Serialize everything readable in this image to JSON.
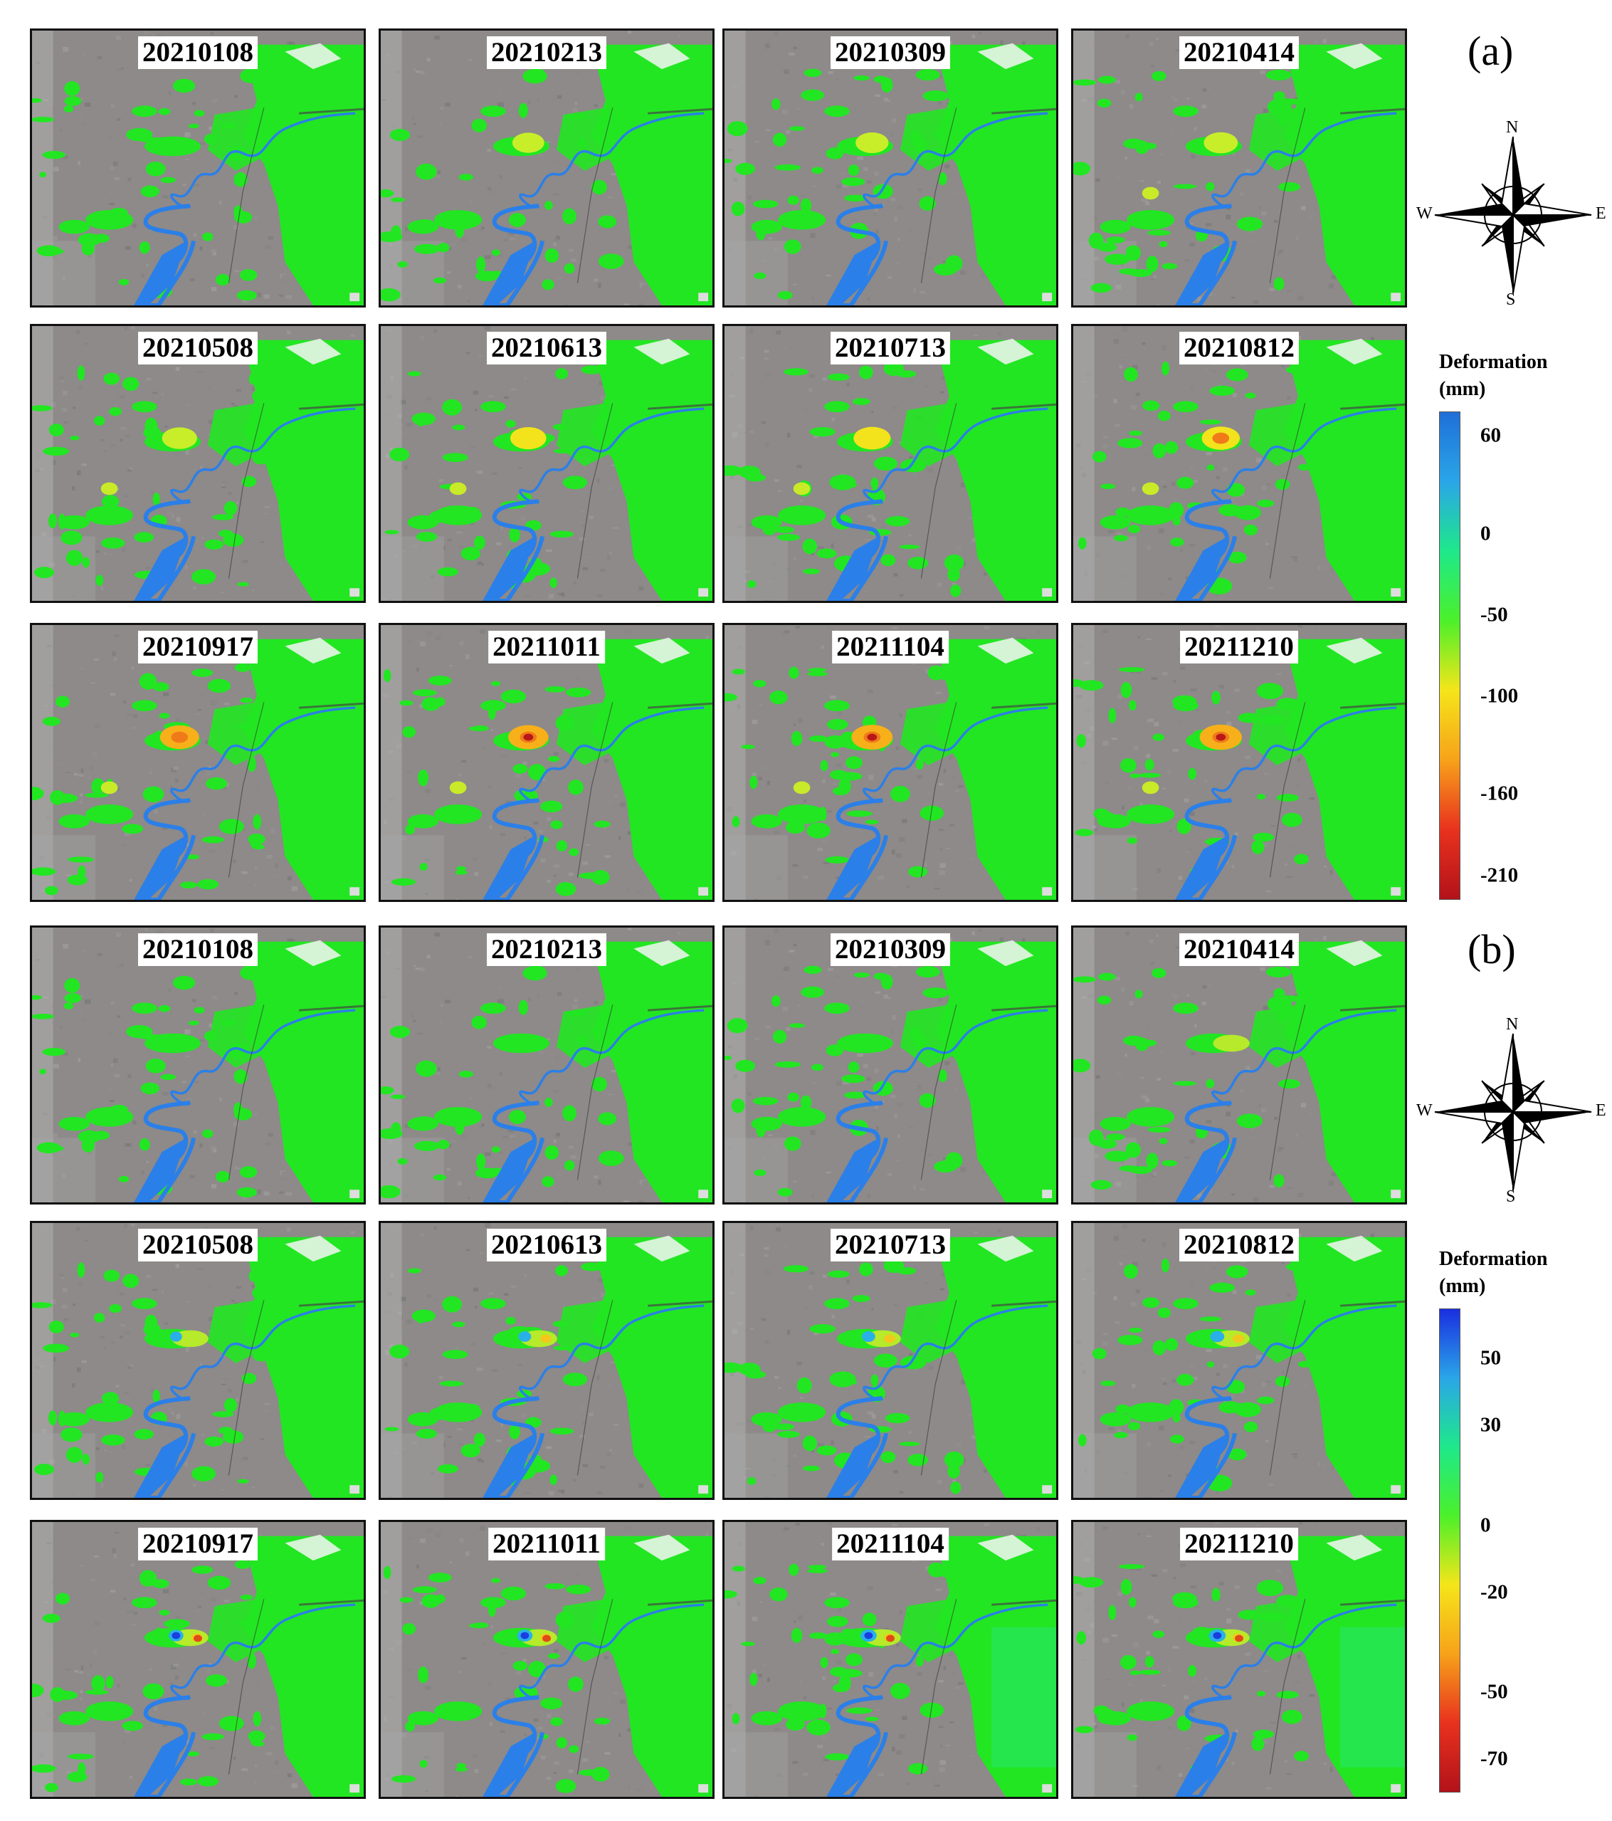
{
  "groups": [
    {
      "letter": "(a)",
      "dates": [
        "20210108",
        "20210213",
        "20210309",
        "20210414",
        "20210508",
        "20210613",
        "20210713",
        "20210812",
        "20210917",
        "20211011",
        "20211104",
        "20211210"
      ],
      "legend": {
        "title_line1": "Deformation",
        "title_line2": "(mm)",
        "ticks": [
          "60",
          "0",
          "-50",
          "-100",
          "-160",
          "-210"
        ],
        "tick_values": [
          60,
          0,
          -50,
          -100,
          -160,
          -210
        ],
        "range": [
          -225,
          75
        ],
        "colors": [
          "#b2121a",
          "#e8321e",
          "#f7a21a",
          "#f5e51a",
          "#4cf02a",
          "#1ee88a",
          "#2aa6e8",
          "#1f6fd8"
        ]
      },
      "compass": {
        "n": "N",
        "s": "S",
        "e": "E",
        "w": "W"
      }
    },
    {
      "letter": "(b)",
      "dates": [
        "20210108",
        "20210213",
        "20210309",
        "20210414",
        "20210508",
        "20210613",
        "20210713",
        "20210812",
        "20210917",
        "20211011",
        "20211104",
        "20211210"
      ],
      "legend": {
        "title_line1": "Deformation",
        "title_line2": "(mm)",
        "ticks": [
          "50",
          "30",
          "0",
          "-20",
          "-50",
          "-70"
        ],
        "tick_values": [
          50,
          30,
          0,
          -20,
          -50,
          -70
        ],
        "range": [
          -80,
          65
        ],
        "colors": [
          "#b2121a",
          "#e8321e",
          "#f7a21a",
          "#f5e51a",
          "#4cf02a",
          "#1ee88a",
          "#2aa6e8",
          "#1a2ee0"
        ]
      },
      "compass": {
        "n": "N",
        "s": "S",
        "e": "E",
        "w": "W"
      }
    }
  ],
  "style": {
    "stable_green": "#22e622",
    "river_blue": "#2b7fe8",
    "background_gray": "#8c8c8c"
  }
}
